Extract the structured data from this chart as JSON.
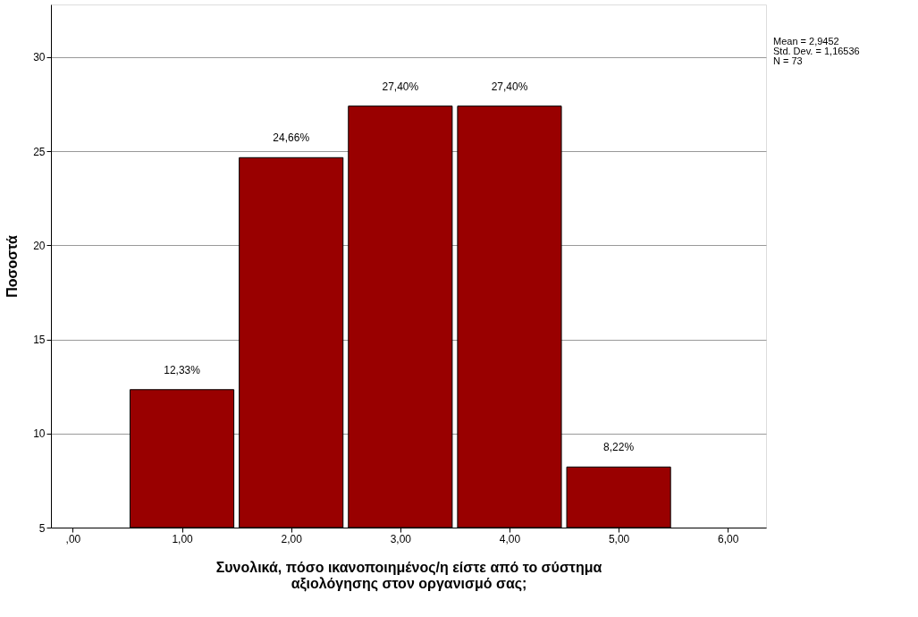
{
  "chart_data": {
    "type": "histogram",
    "xlabel": "Συνολικά, πόσο ικανοποιημένος/η είστε από το σύστημα αξιολόγησης στον οργανισμό σας;",
    "ylabel": "Ποσοστά",
    "bins": [
      0.5,
      1.5,
      2.5,
      3.5,
      4.5,
      5.5
    ],
    "values": [
      12.33,
      24.66,
      27.4,
      27.4,
      8.22
    ],
    "value_labels": [
      "12,33%",
      "24,66%",
      "27,40%",
      "27,40%",
      "8,22%"
    ],
    "color": "#990000",
    "xlim": [
      -0.2,
      6.35
    ],
    "xticks": [
      {
        "value": 0,
        "label": ",00"
      },
      {
        "value": 1,
        "label": "1,00"
      },
      {
        "value": 2,
        "label": "2,00"
      },
      {
        "value": 3,
        "label": "3,00"
      },
      {
        "value": 4,
        "label": "4,00"
      },
      {
        "value": 5,
        "label": "5,00"
      },
      {
        "value": 6,
        "label": "6,00"
      }
    ],
    "ylim": [
      5,
      32.8
    ],
    "yticks": [
      5,
      10,
      15,
      20,
      25,
      30
    ],
    "grid": "y",
    "annotations": [
      "Mean = 2,9452",
      "Std. Dev. = 1,16536",
      "N = 73"
    ]
  }
}
